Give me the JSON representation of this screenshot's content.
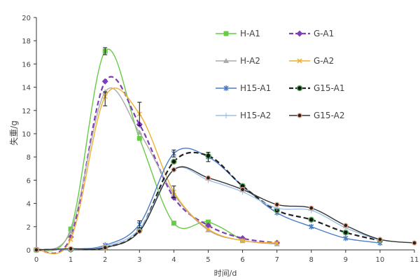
{
  "chart_data": {
    "type": "line",
    "xlabel": "时间/d",
    "ylabel": "失重/g",
    "xlim": [
      0,
      11
    ],
    "ylim": [
      0,
      20
    ],
    "xticks": [
      0,
      1,
      2,
      3,
      4,
      5,
      6,
      7,
      8,
      9,
      10,
      11
    ],
    "yticks": [
      0,
      2,
      4,
      6,
      8,
      10,
      12,
      14,
      16,
      18,
      20
    ],
    "grid": false,
    "legend": "top-right",
    "series": [
      {
        "name": "H-A1",
        "color": "#66cc44",
        "marker": "square",
        "dash": false,
        "x": [
          0,
          1,
          2,
          3,
          4,
          5,
          6
        ],
        "values": [
          0,
          1.8,
          17.1,
          9.6,
          2.3,
          2.4,
          0.8
        ]
      },
      {
        "name": "G-A1",
        "color": "#7d3fb8",
        "marker": "diamond",
        "dash": true,
        "x": [
          0,
          1,
          2,
          3,
          4,
          5,
          6,
          7
        ],
        "values": [
          0,
          1.1,
          14.5,
          10.8,
          4.5,
          2.1,
          1.0,
          0.6
        ]
      },
      {
        "name": "H-A2",
        "color": "#aaaaaa",
        "marker": "triangle",
        "dash": false,
        "x": [
          0,
          1,
          2,
          3,
          4,
          5,
          6,
          7
        ],
        "values": [
          0,
          1.6,
          13.6,
          10.1,
          4.8,
          1.7,
          0.8,
          0.5
        ]
      },
      {
        "name": "G-A2",
        "color": "#f0b030",
        "marker": "x",
        "dash": false,
        "x": [
          0,
          1,
          2,
          3,
          4,
          5,
          6,
          7
        ],
        "values": [
          0,
          0.9,
          13.2,
          11.7,
          5.0,
          1.8,
          0.8,
          0.6
        ]
      },
      {
        "name": "H15-A1",
        "color": "#4a7cc8",
        "marker": "star",
        "dash": false,
        "x": [
          0,
          1,
          2,
          3,
          4,
          5,
          6,
          7,
          8,
          9,
          10
        ],
        "values": [
          0,
          0.05,
          0.4,
          2.2,
          8.3,
          8.0,
          5.5,
          3.2,
          2.0,
          1.0,
          0.6
        ]
      },
      {
        "name": "G15-A1",
        "color": "#222222",
        "marker": "circle-green",
        "dash": true,
        "x": [
          0,
          1,
          2,
          3,
          4,
          5,
          6,
          7,
          8,
          9,
          10
        ],
        "values": [
          0,
          0.05,
          0.2,
          1.7,
          7.6,
          8.1,
          5.5,
          3.4,
          2.6,
          1.5,
          0.8
        ]
      },
      {
        "name": "H15-A2",
        "color": "#9fc0e8",
        "marker": "plus",
        "dash": false,
        "x": [
          0,
          1,
          2,
          3,
          4,
          5,
          6,
          7,
          8,
          9,
          10
        ],
        "values": [
          0,
          0.05,
          0.3,
          1.8,
          6.9,
          6.0,
          5.0,
          3.6,
          3.4,
          1.9,
          0.8
        ]
      },
      {
        "name": "G15-A2",
        "color": "#333333",
        "marker": "circle-red",
        "dash": false,
        "x": [
          0,
          1,
          2,
          3,
          4,
          5,
          6,
          7,
          8,
          9,
          10,
          11
        ],
        "values": [
          0,
          0.1,
          0.2,
          1.6,
          6.9,
          6.2,
          5.2,
          3.9,
          3.6,
          2.1,
          0.9,
          0.6
        ]
      }
    ],
    "error_bars": [
      {
        "x": 2,
        "y": 17.1,
        "err": 0.3
      },
      {
        "x": 2,
        "y": 13.0,
        "err": 0.6
      },
      {
        "x": 3,
        "y": 11.7,
        "err": 1.0
      },
      {
        "x": 4,
        "y": 5.0,
        "err": 0.5
      },
      {
        "x": 4,
        "y": 8.3,
        "err": 0.3
      },
      {
        "x": 5,
        "y": 8.0,
        "err": 0.4
      },
      {
        "x": 3,
        "y": 2.2,
        "err": 0.3
      }
    ]
  }
}
